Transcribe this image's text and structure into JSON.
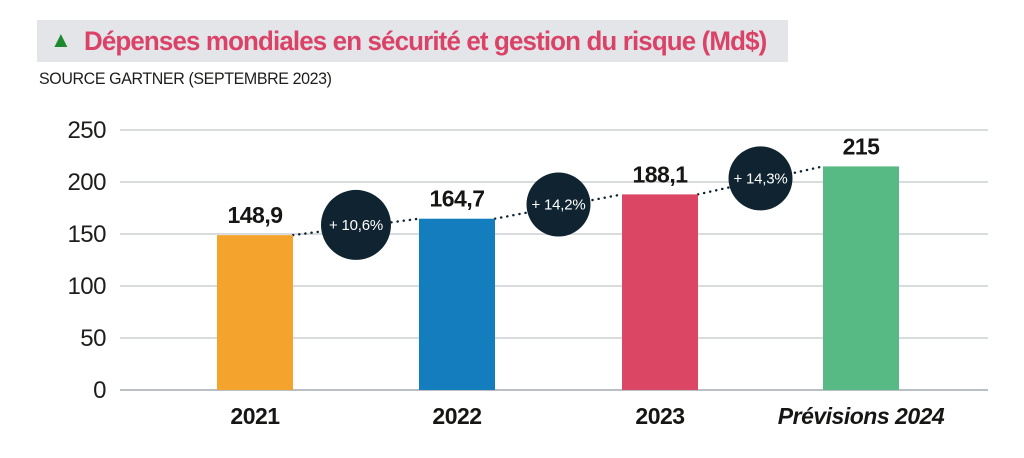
{
  "header": {
    "triangle_icon": "▲",
    "title": "Dépenses mondiales en sécurité et gestion du risque (Md$)",
    "source": "SOURCE GARTNER (SEPTEMBRE 2023)"
  },
  "colors": {
    "title_text": "#DB4268",
    "title_bar_bg": "#E3E5E8",
    "triangle_green": "#1E8A2E",
    "badge_bg": "#0F2430",
    "grid_line": "#D8DCDF",
    "zero_line": "#B9BFC5",
    "axis_text": "#1D1D1B"
  },
  "chart_data": {
    "type": "bar",
    "title": "Dépenses mondiales en sécurité et gestion du risque (Md$)",
    "source": "SOURCE GARTNER (SEPTEMBRE 2023)",
    "unit": "Md$",
    "categories": [
      "2021",
      "2022",
      "2023",
      "Prévisions 2024"
    ],
    "italic_categories": [
      false,
      false,
      false,
      true
    ],
    "values": [
      148.9,
      164.7,
      188.1,
      215
    ],
    "value_labels": [
      "148,9",
      "164,7",
      "188,1",
      "215"
    ],
    "bar_colors": [
      "#F4A42C",
      "#137DBE",
      "#DA4663",
      "#57BA85"
    ],
    "growth_labels": [
      "+ 10,6%",
      "+ 14,2%",
      "+ 14,3%"
    ],
    "yticks": [
      0,
      50,
      100,
      150,
      200,
      250
    ],
    "ylim": [
      0,
      250
    ],
    "grid": true,
    "legend": "none",
    "trend_line": "dotted"
  }
}
